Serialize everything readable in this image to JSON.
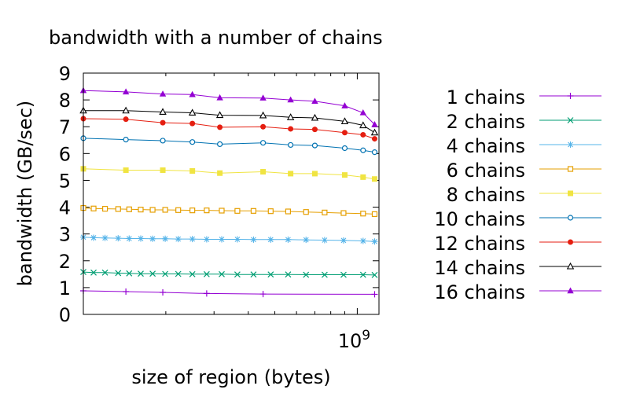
{
  "chart_data": {
    "type": "line",
    "title": "bandwidth with a number of chains",
    "xlabel": "size of region (bytes)",
    "ylabel": "bandwidth (GB/sec)",
    "x_scale": "log",
    "xlim": [
      100000000,
      1200000000
    ],
    "ylim": [
      0,
      9
    ],
    "x_tick_labels": [
      {
        "value": 1000000000,
        "base": "10",
        "exp": "9"
      }
    ],
    "y_ticks": [
      0,
      1,
      2,
      3,
      4,
      5,
      6,
      7,
      8,
      9
    ],
    "grid": false,
    "legend_position": "right",
    "series": [
      {
        "name": "1 chains",
        "color": "#9400d3",
        "marker": "plus",
        "x": [
          100000000,
          143000000,
          195000000,
          282000000,
          453000000,
          1157000000
        ],
        "y": [
          0.88,
          0.85,
          0.82,
          0.78,
          0.76,
          0.75
        ]
      },
      {
        "name": "2 chains",
        "color": "#009e73",
        "marker": "x",
        "x": [
          100000000,
          109000000,
          120000000,
          134000000,
          147000000,
          162000000,
          179000000,
          199000000,
          222000000,
          250000000,
          282000000,
          320000000,
          365000000,
          418000000,
          483000000,
          559000000,
          650000000,
          760000000,
          891000000,
          1050000000,
          1157000000
        ],
        "y": [
          1.58,
          1.56,
          1.56,
          1.54,
          1.53,
          1.52,
          1.52,
          1.51,
          1.51,
          1.5,
          1.5,
          1.5,
          1.49,
          1.49,
          1.49,
          1.49,
          1.48,
          1.48,
          1.48,
          1.48,
          1.47
        ]
      },
      {
        "name": "4 chains",
        "color": "#56b4e9",
        "marker": "star",
        "x": [
          100000000,
          109000000,
          120000000,
          134000000,
          147000000,
          162000000,
          179000000,
          199000000,
          222000000,
          250000000,
          282000000,
          320000000,
          365000000,
          418000000,
          483000000,
          559000000,
          650000000,
          760000000,
          891000000,
          1050000000,
          1157000000
        ],
        "y": [
          2.88,
          2.86,
          2.85,
          2.84,
          2.83,
          2.83,
          2.82,
          2.82,
          2.81,
          2.81,
          2.8,
          2.8,
          2.8,
          2.79,
          2.79,
          2.79,
          2.78,
          2.77,
          2.76,
          2.74,
          2.72
        ]
      },
      {
        "name": "6 chains",
        "color": "#e69f00",
        "marker": "square-open",
        "x": [
          100000000,
          109000000,
          120000000,
          134000000,
          147000000,
          162000000,
          179000000,
          199000000,
          222000000,
          250000000,
          282000000,
          320000000,
          365000000,
          418000000,
          483000000,
          559000000,
          650000000,
          760000000,
          891000000,
          1050000000,
          1157000000
        ],
        "y": [
          3.97,
          3.95,
          3.94,
          3.93,
          3.92,
          3.91,
          3.9,
          3.9,
          3.89,
          3.88,
          3.88,
          3.87,
          3.86,
          3.86,
          3.85,
          3.84,
          3.82,
          3.8,
          3.78,
          3.76,
          3.74
        ]
      },
      {
        "name": "8 chains",
        "color": "#f0e442",
        "marker": "square-filled",
        "x": [
          100000000,
          143000000,
          195000000,
          250000000,
          315000000,
          453000000,
          571000000,
          700000000,
          900000000,
          1050000000,
          1157000000
        ],
        "y": [
          5.43,
          5.38,
          5.38,
          5.35,
          5.27,
          5.32,
          5.25,
          5.25,
          5.2,
          5.12,
          5.05
        ]
      },
      {
        "name": "10 chains",
        "color": "#0072b2",
        "marker": "circle-open",
        "x": [
          100000000,
          143000000,
          195000000,
          250000000,
          315000000,
          453000000,
          571000000,
          700000000,
          900000000,
          1050000000,
          1157000000
        ],
        "y": [
          6.57,
          6.52,
          6.48,
          6.43,
          6.35,
          6.4,
          6.32,
          6.3,
          6.2,
          6.12,
          6.05
        ]
      },
      {
        "name": "12 chains",
        "color": "#e51e10",
        "marker": "circle-filled",
        "x": [
          100000000,
          143000000,
          195000000,
          250000000,
          315000000,
          453000000,
          571000000,
          700000000,
          900000000,
          1050000000,
          1157000000
        ],
        "y": [
          7.3,
          7.28,
          7.15,
          7.12,
          6.98,
          7.0,
          6.92,
          6.9,
          6.78,
          6.7,
          6.55
        ]
      },
      {
        "name": "14 chains",
        "color": "#000000",
        "marker": "triangle-open",
        "x": [
          100000000,
          143000000,
          195000000,
          250000000,
          315000000,
          453000000,
          571000000,
          700000000,
          900000000,
          1050000000,
          1157000000
        ],
        "y": [
          7.6,
          7.6,
          7.55,
          7.52,
          7.43,
          7.42,
          7.35,
          7.33,
          7.2,
          7.05,
          6.78
        ]
      },
      {
        "name": "16 chains",
        "color": "#9400d3",
        "marker": "triangle-filled",
        "x": [
          100000000,
          143000000,
          195000000,
          250000000,
          315000000,
          453000000,
          571000000,
          700000000,
          900000000,
          1050000000,
          1157000000
        ],
        "y": [
          8.35,
          8.3,
          8.22,
          8.2,
          8.08,
          8.07,
          8.0,
          7.95,
          7.78,
          7.52,
          7.08
        ]
      }
    ]
  }
}
